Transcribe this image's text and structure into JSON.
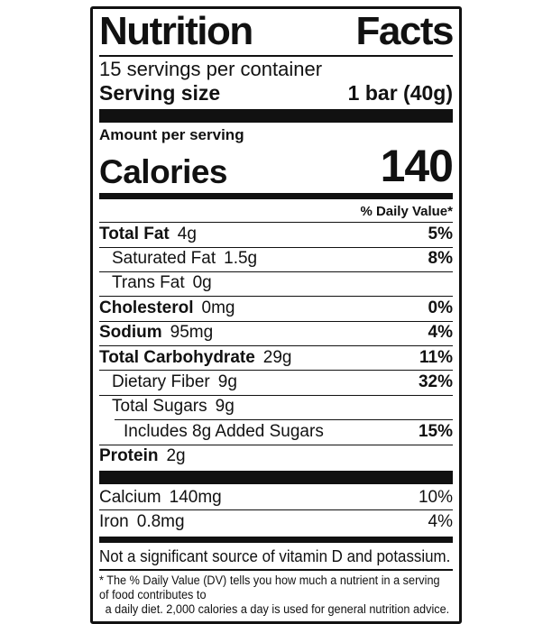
{
  "colors": {
    "ink": "#111111",
    "background": "#ffffff"
  },
  "label": {
    "title": "Nutrition Facts",
    "servings_per_container": "15 servings per container",
    "serving_size_label": "Serving size",
    "serving_size_value": "1 bar (40g)",
    "amount_per_serving": "Amount per serving",
    "calories_label": "Calories",
    "calories_value": "140",
    "daily_value_header": "% Daily Value*",
    "nutrients": [
      {
        "name": "Total Fat",
        "amount": "4g",
        "dv": "5%",
        "name_bold": true,
        "dv_bold": true,
        "indent": 0,
        "rule_indent": false
      },
      {
        "name": "Saturated Fat",
        "amount": "1.5g",
        "dv": "8%",
        "name_bold": false,
        "dv_bold": true,
        "indent": 1,
        "rule_indent": false
      },
      {
        "name": "Trans Fat",
        "amount": "0g",
        "dv": "",
        "name_bold": false,
        "dv_bold": false,
        "indent": 1,
        "rule_indent": false
      },
      {
        "name": "Cholesterol",
        "amount": "0mg",
        "dv": "0%",
        "name_bold": true,
        "dv_bold": true,
        "indent": 0,
        "rule_indent": false
      },
      {
        "name": "Sodium",
        "amount": "95mg",
        "dv": "4%",
        "name_bold": true,
        "dv_bold": true,
        "indent": 0,
        "rule_indent": false
      },
      {
        "name": "Total Carbohydrate",
        "amount": "29g",
        "dv": "11%",
        "name_bold": true,
        "dv_bold": true,
        "indent": 0,
        "rule_indent": false
      },
      {
        "name": "Dietary Fiber",
        "amount": "9g",
        "dv": "32%",
        "name_bold": false,
        "dv_bold": true,
        "indent": 1,
        "rule_indent": false
      },
      {
        "name": "Total Sugars",
        "amount": "9g",
        "dv": "",
        "name_bold": false,
        "dv_bold": false,
        "indent": 1,
        "rule_indent": false
      },
      {
        "name": "Includes 8g Added Sugars",
        "amount": "",
        "dv": "15%",
        "name_bold": false,
        "dv_bold": true,
        "indent": 2,
        "rule_indent": true
      },
      {
        "name": "Protein",
        "amount": "2g",
        "dv": "",
        "name_bold": true,
        "dv_bold": false,
        "indent": 0,
        "rule_indent": false
      }
    ],
    "minerals": [
      {
        "name": "Calcium",
        "amount": "140mg",
        "dv": "10%"
      },
      {
        "name": "Iron",
        "amount": "0.8mg",
        "dv": "4%"
      }
    ],
    "not_significant": "Not a significant source of vitamin D and potassium.",
    "footnote_line1": "* The % Daily Value (DV) tells you how much a nutrient in a serving of food contributes to",
    "footnote_line2": "a daily diet. 2,000 calories a day is used for general nutrition advice."
  }
}
